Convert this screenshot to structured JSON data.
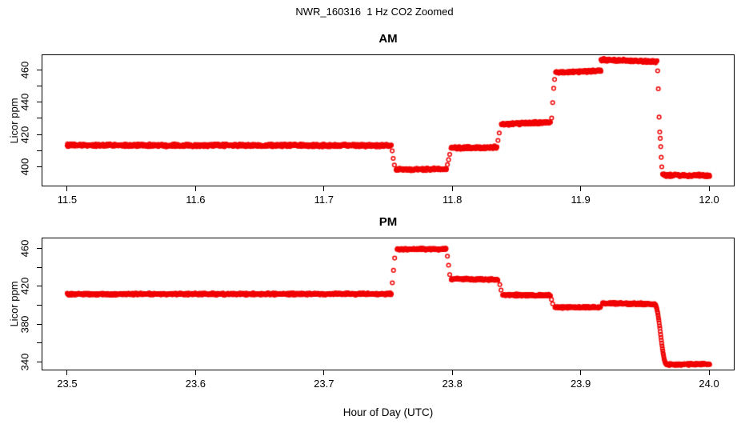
{
  "title": "NWR_160316  1 Hz CO2 Zoomed",
  "xlabel": "Hour of Day (UTC)",
  "point_color": "#F00000",
  "chart_data": [
    {
      "id": "am",
      "type": "scatter",
      "title": "AM",
      "ylabel": "Licor ppm",
      "marker": "open-circle",
      "xlim": [
        11.4807,
        12.0193
      ],
      "ylim": [
        388.2,
        469.3
      ],
      "x_ticks": [
        11.5,
        11.6,
        11.7,
        11.8,
        11.9,
        12.0
      ],
      "x_tick_labels": [
        "11.5",
        "11.6",
        "11.7",
        "11.8",
        "11.9",
        "12.0"
      ],
      "y_ticks": [
        400,
        410,
        420,
        430,
        440,
        450,
        460
      ],
      "y_tick_labels": [
        "400",
        "",
        "420",
        "",
        "440",
        "",
        "460"
      ],
      "jitter": 1.0,
      "segments": [
        {
          "x0": 11.5,
          "x1": 11.7525,
          "v0": 413.3,
          "v1": 413.1
        },
        {
          "x0": 11.7562,
          "x1": 11.7955,
          "v0": 398.1,
          "v1": 398.5
        },
        {
          "x0": 11.799,
          "x1": 11.8348,
          "v0": 411.5,
          "v1": 412.0
        },
        {
          "x0": 11.8382,
          "x1": 11.8765,
          "v0": 426.2,
          "v1": 427.7
        },
        {
          "x0": 11.8805,
          "x1": 11.9158,
          "v0": 458.6,
          "v1": 459.5
        },
        {
          "x0": 11.9158,
          "x1": 11.9595,
          "v0": 466.4,
          "v1": 465.2
        },
        {
          "x0": 11.9638,
          "x1": 12.0005,
          "v0": 394.7,
          "v1": 394.4
        }
      ],
      "points": [
        [
          11.7532,
          409.8
        ],
        [
          11.754,
          405.1
        ],
        [
          11.7549,
          401.0
        ],
        [
          11.7962,
          401.2
        ],
        [
          11.7971,
          404.3
        ],
        [
          11.798,
          407.6
        ],
        [
          11.8356,
          416.3
        ],
        [
          11.8366,
          420.9
        ],
        [
          11.8774,
          430.2
        ],
        [
          11.8782,
          439.8
        ],
        [
          11.879,
          448.7
        ],
        [
          11.8797,
          454.2
        ],
        [
          11.96,
          459.6
        ],
        [
          11.9605,
          448.4
        ],
        [
          11.9611,
          430.8
        ],
        [
          11.9616,
          421.5
        ],
        [
          11.962,
          417.6
        ],
        [
          11.9624,
          412.4
        ],
        [
          11.9628,
          405.8
        ],
        [
          11.9632,
          399.9
        ]
      ]
    },
    {
      "id": "pm",
      "type": "scatter",
      "title": "PM",
      "ylabel": "Licor ppm",
      "marker": "open-circle",
      "xlim": [
        23.4807,
        24.0193
      ],
      "ylim": [
        331.6,
        470.9
      ],
      "x_ticks": [
        23.5,
        23.6,
        23.7,
        23.8,
        23.9,
        24.0
      ],
      "x_tick_labels": [
        "23.5",
        "23.6",
        "23.7",
        "23.8",
        "23.9",
        "24.0"
      ],
      "y_ticks": [
        340,
        360,
        380,
        400,
        420,
        440,
        460
      ],
      "y_tick_labels": [
        "340",
        "",
        "380",
        "",
        "420",
        "",
        "460"
      ],
      "jitter": 1.3,
      "segments": [
        {
          "x0": 23.5,
          "x1": 23.7525,
          "v0": 411.7,
          "v1": 411.9
        },
        {
          "x0": 23.757,
          "x1": 23.7952,
          "v0": 459.2,
          "v1": 459.6
        },
        {
          "x0": 23.7992,
          "x1": 23.8355,
          "v0": 427.9,
          "v1": 427.1
        },
        {
          "x0": 23.8392,
          "x1": 23.8765,
          "v0": 411.0,
          "v1": 410.3
        },
        {
          "x0": 23.88,
          "x1": 23.9155,
          "v0": 397.6,
          "v1": 397.9
        },
        {
          "x0": 23.917,
          "x1": 23.9578,
          "v0": 401.9,
          "v1": 401.2
        },
        {
          "x0": 23.9578,
          "x1": 23.9668,
          "v0": 400.8,
          "v1": 337.4,
          "ease": "scurve"
        },
        {
          "x0": 23.9668,
          "x1": 24.0005,
          "v0": 337.1,
          "v1": 337.3
        }
      ],
      "points": [
        [
          23.7533,
          423.8
        ],
        [
          23.7542,
          437.0
        ],
        [
          23.7551,
          450.0
        ],
        [
          23.7962,
          452.0
        ],
        [
          23.7971,
          442.5
        ],
        [
          23.798,
          432.5
        ],
        [
          23.837,
          421.8
        ],
        [
          23.838,
          416.0
        ],
        [
          23.8773,
          406.0
        ],
        [
          23.8782,
          401.5
        ]
      ]
    }
  ]
}
